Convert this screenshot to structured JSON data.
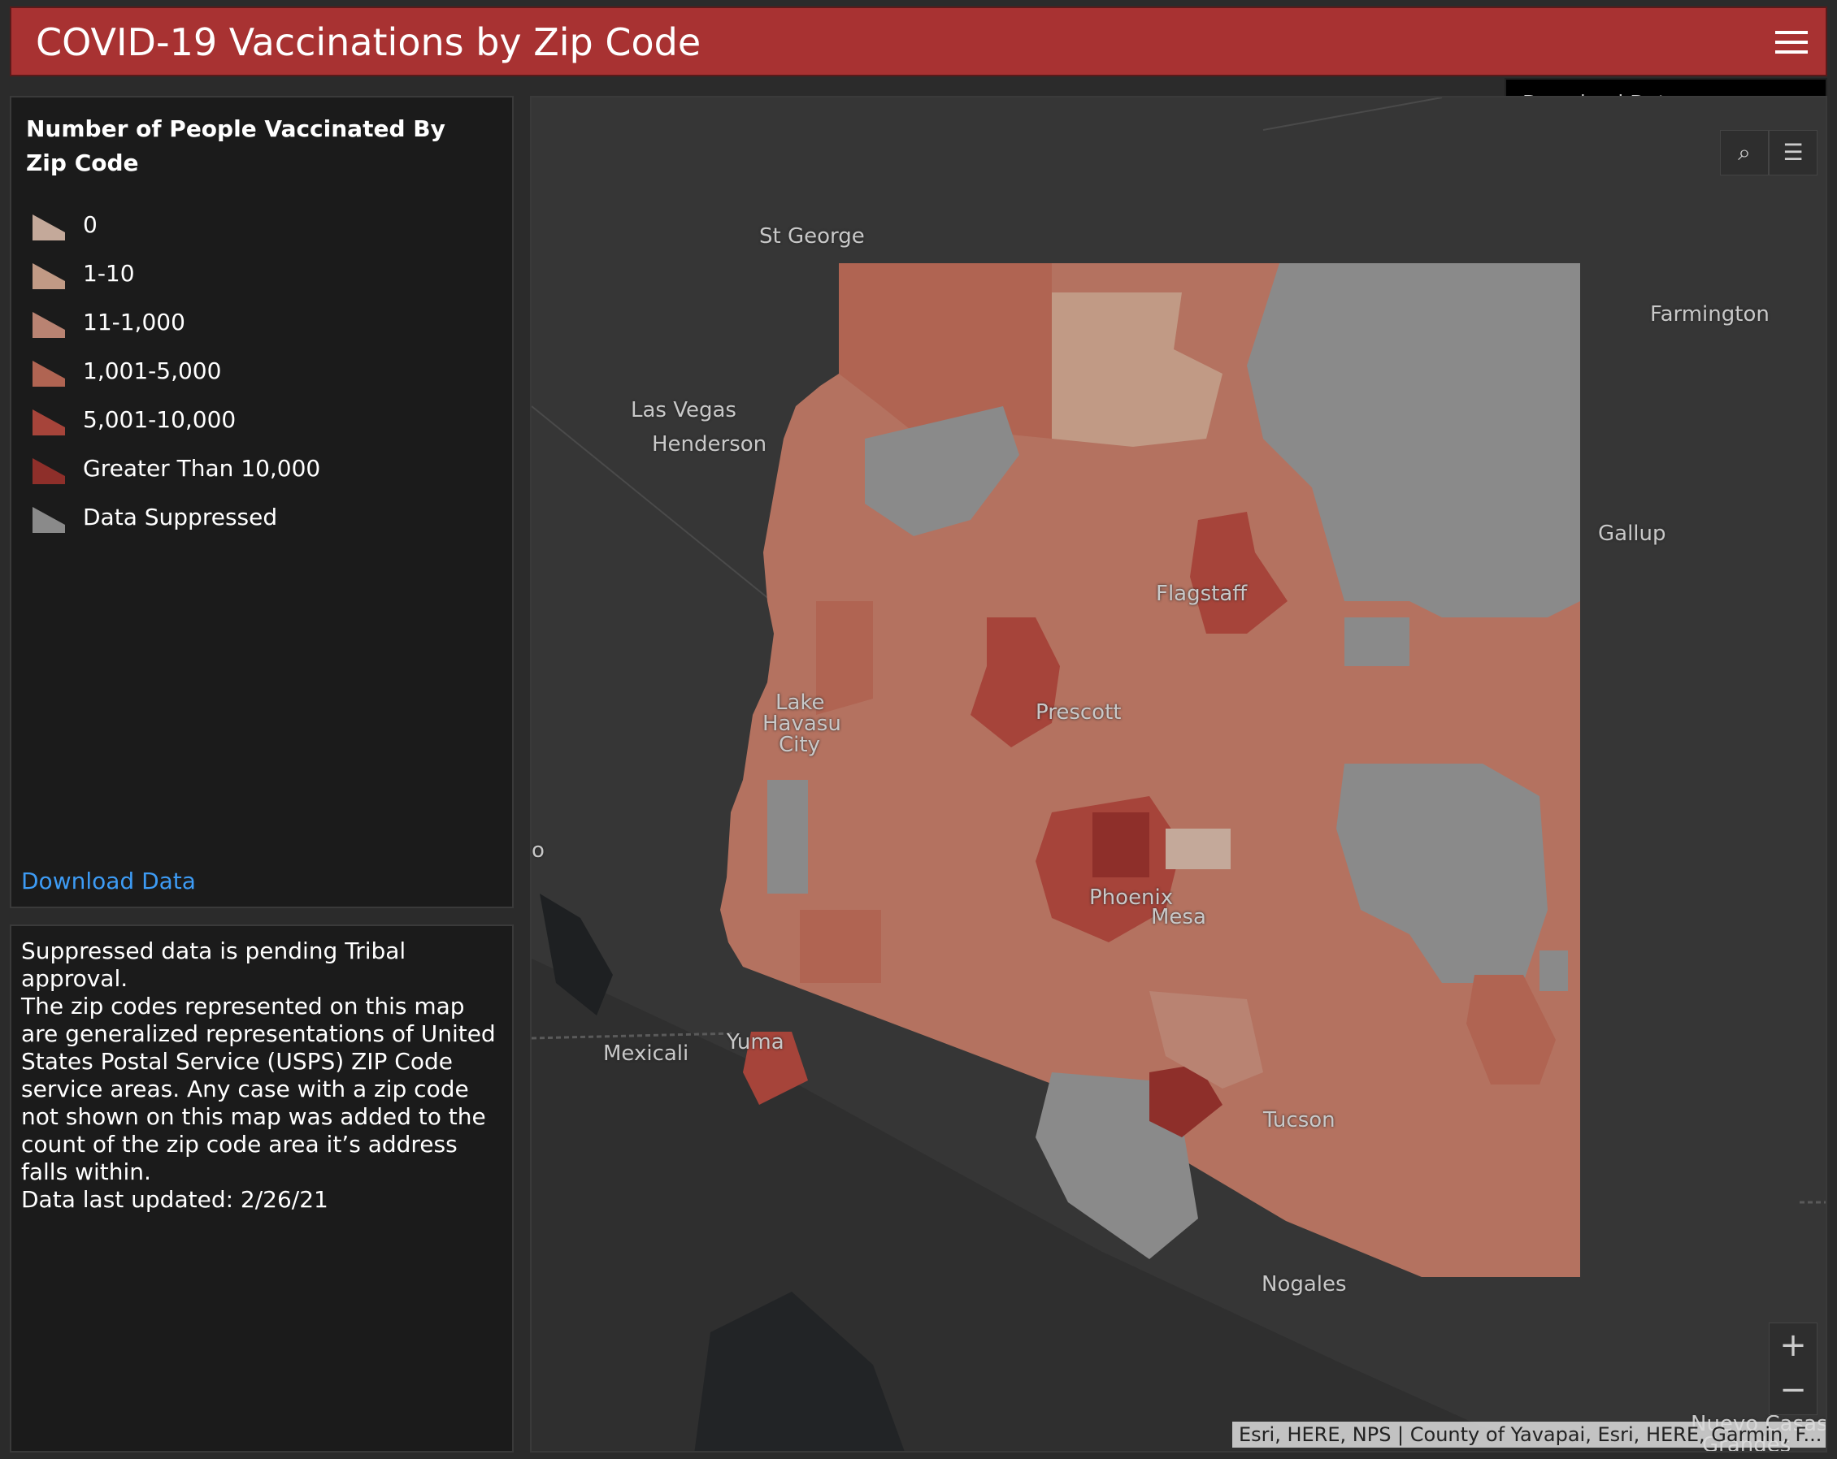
{
  "header": {
    "title": "COVID-19 Vaccinations by Zip Code",
    "menu_icon": "hamburger-icon"
  },
  "dropdown": {
    "download": "Download Data"
  },
  "legend": {
    "title": "Number of People Vaccinated By Zip Code",
    "items": [
      {
        "label": "0",
        "color": "#c4a99a"
      },
      {
        "label": "1-10",
        "color": "#c19a85"
      },
      {
        "label": "11-1,000",
        "color": "#b98372"
      },
      {
        "label": "1,001-5,000",
        "color": "#b06452"
      },
      {
        "label": "5,001-10,000",
        "color": "#a6443a"
      },
      {
        "label": "Greater Than 10,000",
        "color": "#8e2f2a"
      },
      {
        "label": "Data Suppressed",
        "color": "#8a8a8a"
      }
    ],
    "download_link": "Download Data"
  },
  "info": {
    "line1": "Suppressed data is pending Tribal approval.",
    "line2": "The zip codes represented on this map are generalized representations of United States Postal Service (USPS) ZIP Code service areas. Any case with a zip code not shown on this map was added to the count of the zip code area it’s address falls within.",
    "line3": "Data last updated: 2/26/21"
  },
  "map": {
    "labels": {
      "st_george": "St George",
      "farmington": "Farmington",
      "las_vegas": "Las Vegas",
      "henderson": "Henderson",
      "gallup": "Gallup",
      "flagstaff": "Flagstaff",
      "lake": "Lake",
      "havasu": "Havasu",
      "city": "City",
      "prescott": "Prescott",
      "phoenix": "Phoenix",
      "mesa": "Mesa",
      "o": "o",
      "yuma": "Yuma",
      "mexicali": "Mexicali",
      "tucson": "Tucson",
      "nogales": "Nogales",
      "nuevo_casas": "Nuevo Casas",
      "grandes": "Grandes"
    },
    "zoom_in": "+",
    "zoom_out": "−",
    "attribution": "Esri, HERE, NPS | County of Yavapai, Esri, HERE, Garmin, F..."
  }
}
